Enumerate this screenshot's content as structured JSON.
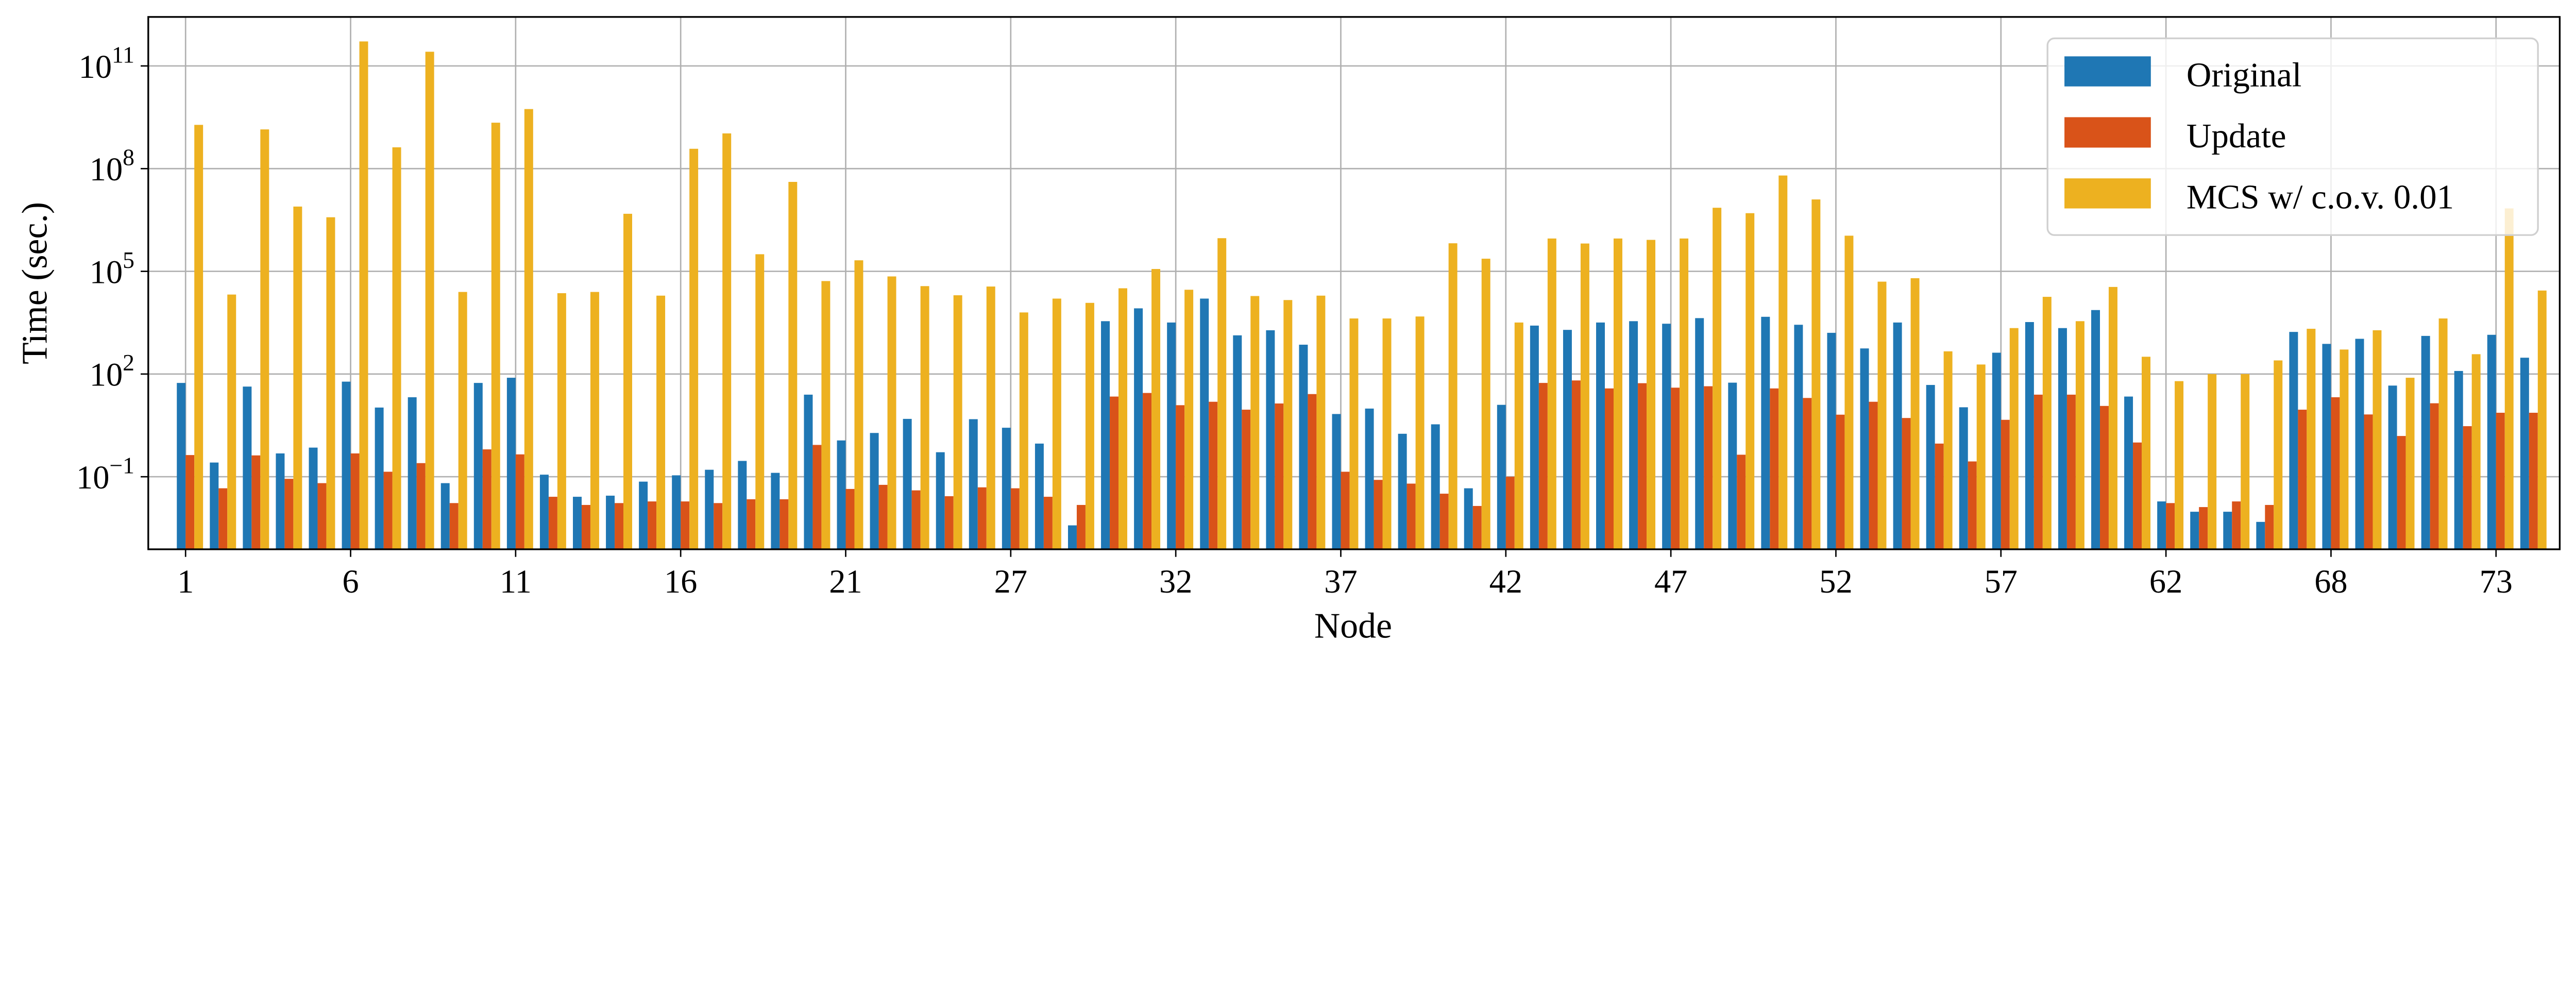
{
  "chart_data": {
    "type": "bar",
    "title": "",
    "xlabel": "Node",
    "ylabel": "Time (sec.)",
    "yscale": "log",
    "ylim": [
      0.00076,
      2700000000000.0
    ],
    "xlim": [
      -1.13,
      71.93
    ],
    "grid": true,
    "legend_position": "top-right",
    "xtick_labels": [
      "1",
      "6",
      "11",
      "16",
      "21",
      "27",
      "32",
      "37",
      "42",
      "47",
      "52",
      "57",
      "62",
      "68",
      "73"
    ],
    "xtick_step": 5,
    "ytick_values": [
      0.1,
      100,
      100000,
      100000000,
      100000000000
    ],
    "ytick_labels": [
      {
        "base": "10",
        "exp": "−1"
      },
      {
        "base": "10",
        "exp": "2"
      },
      {
        "base": "10",
        "exp": "5"
      },
      {
        "base": "10",
        "exp": "8"
      },
      {
        "base": "10",
        "exp": "11"
      }
    ],
    "series": [
      {
        "name": "Original",
        "color": "#1f77b4",
        "values": [
          55,
          0.26,
          43,
          0.48,
          0.71,
          60,
          10.5,
          21,
          0.065,
          55,
          78,
          0.115,
          0.026,
          0.028,
          0.072,
          0.11,
          0.16,
          0.29,
          0.13,
          25,
          1.15,
          1.9,
          4.9,
          0.52,
          4.8,
          2.7,
          0.93,
          0.0038,
          3500,
          8300,
          3200,
          16000,
          1350,
          1900,
          720,
          6.8,
          9.8,
          1.8,
          3.4,
          0.046,
          12.6,
          2600,
          1950,
          3200,
          3500,
          2950,
          4300,
          56,
          4700,
          2750,
          1600,
          560,
          3200,
          48,
          10.7,
          420,
          3300,
          2200,
          7400,
          22,
          0.019,
          0.0095,
          0.0095,
          0.0048,
          1700,
          760,
          1070,
          46,
          1300,
          123,
          1400,
          300
        ]
      },
      {
        "name": "Update",
        "color": "#d95319",
        "values": [
          0.43,
          0.046,
          0.42,
          0.087,
          0.065,
          0.48,
          0.14,
          0.25,
          0.017,
          0.63,
          0.45,
          0.026,
          0.015,
          0.017,
          0.019,
          0.019,
          0.017,
          0.022,
          0.022,
          0.85,
          0.044,
          0.058,
          0.04,
          0.027,
          0.049,
          0.046,
          0.026,
          0.015,
          22,
          28,
          12.3,
          15.5,
          9.1,
          13.8,
          26,
          0.14,
          0.081,
          0.063,
          0.032,
          0.014,
          0.1,
          55,
          65,
          38,
          54,
          40,
          44,
          0.44,
          38,
          20,
          6.5,
          15.5,
          5.2,
          0.93,
          0.28,
          4.6,
          25,
          25,
          11.7,
          1.0,
          0.017,
          0.013,
          0.019,
          0.015,
          9.1,
          21,
          6.6,
          1.55,
          14,
          3.0,
          7.4,
          7.4
        ]
      },
      {
        "name": "MCS w/ c.o.v. 0.01",
        "color": "#edb120",
        "values": [
          1900000000.0,
          21000,
          1400000000.0,
          7800000.0,
          3800000.0,
          520000000000.0,
          420000000.0,
          260000000000.0,
          25000,
          2200000000.0,
          5500000000.0,
          23000,
          25000,
          4800000.0,
          19500,
          380000000.0,
          1070000000.0,
          316000,
          41000000.0,
          52000,
          210000,
          71000,
          37000,
          20000,
          36000,
          6300,
          16000,
          12000,
          32000,
          117000,
          29000,
          930000,
          19000,
          14500,
          19500,
          4200,
          4200,
          4800,
          660000,
          234000,
          3200,
          910000,
          650000,
          910000,
          830000,
          910000,
          7200000.0,
          5000000.0,
          63000000.0,
          12600000.0,
          1100000.0,
          50000,
          63000,
          460,
          190,
          2200,
          18000,
          3500,
          35000,
          320,
          62,
          100,
          100,
          250,
          2100,
          520,
          1900,
          78,
          4200,
          380,
          6900000.0,
          27500
        ]
      }
    ]
  }
}
